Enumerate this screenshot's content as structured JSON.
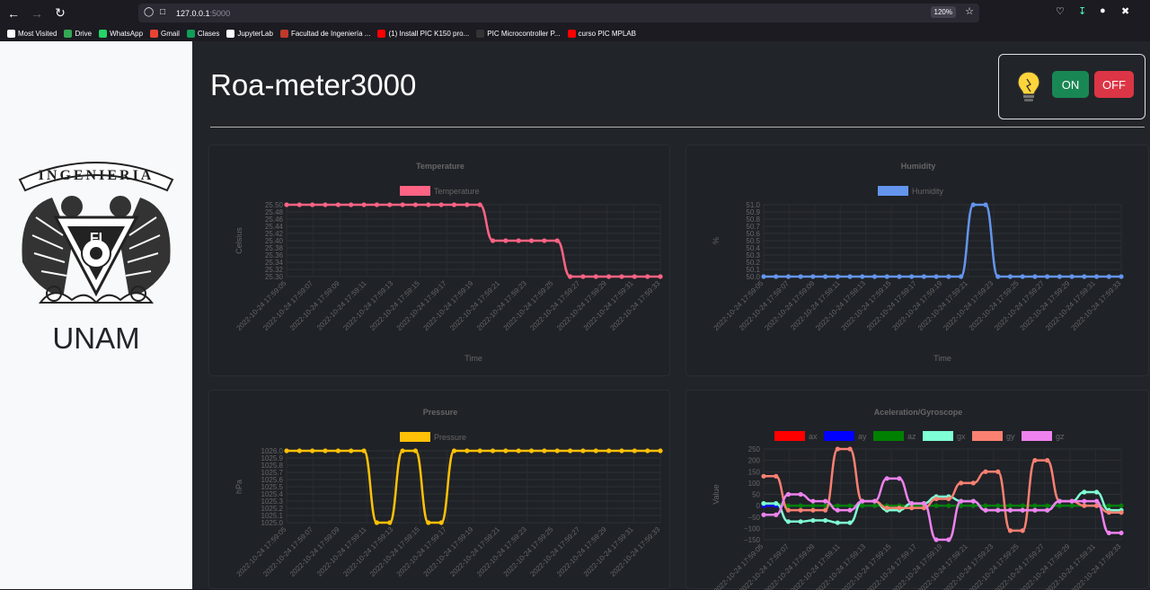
{
  "browser": {
    "url_host": "127.0.0.1",
    "url_port": ":5000",
    "zoom": "120%"
  },
  "bookmarks": [
    {
      "label": "Most Visited",
      "color": "#fbfbfe"
    },
    {
      "label": "Drive",
      "color": "#34a853"
    },
    {
      "label": "WhatsApp",
      "color": "#25d366"
    },
    {
      "label": "Gmail",
      "color": "#ea4335"
    },
    {
      "label": "Clases",
      "color": "#0f9d58"
    },
    {
      "label": "JupyterLab",
      "color": "#fbfbfe"
    },
    {
      "label": "Facultad de Ingeniería ...",
      "color": "#c0392b"
    },
    {
      "label": "(1) Install PIC K150 pro...",
      "color": "#ff0000"
    },
    {
      "label": "PIC Microcontroller P...",
      "color": "#333333"
    },
    {
      "label": "curso PIC MPLAB",
      "color": "#ff0000"
    }
  ],
  "sidebar": {
    "logo_text": "INGENIERIA",
    "logo_letters": "FI",
    "name": "UNAM"
  },
  "header": {
    "title": "Roa-meter3000"
  },
  "controls": {
    "on_label": "ON",
    "off_label": "OFF",
    "on_color": "#198754",
    "off_color": "#dc3545"
  },
  "time_labels": [
    "2022-10-24 17:59:05",
    "2022-10-24 17:59:07",
    "2022-10-24 17:59:09",
    "2022-10-24 17:59:11",
    "2022-10-24 17:59:13",
    "2022-10-24 17:59:15",
    "2022-10-24 17:59:17",
    "2022-10-24 17:59:19",
    "2022-10-24 17:59:21",
    "2022-10-24 17:59:23",
    "2022-10-24 17:59:25",
    "2022-10-24 17:59:27",
    "2022-10-24 17:59:29",
    "2022-10-24 17:59:31",
    "2022-10-24 17:59:33"
  ],
  "chart_data": [
    {
      "id": "temperature",
      "type": "line",
      "title": "Temperature",
      "xlabel": "Time",
      "ylabel": "Celsius",
      "ylim": [
        25.3,
        25.5
      ],
      "yticks": [
        "25.50",
        "25.48",
        "25.46",
        "25.44",
        "25.42",
        "25.40",
        "25.38",
        "25.36",
        "25.34",
        "25.32",
        "25.30"
      ],
      "series": [
        {
          "name": "Temperature",
          "color": "#ff6384",
          "values": [
            25.5,
            25.5,
            25.5,
            25.5,
            25.5,
            25.5,
            25.5,
            25.5,
            25.5,
            25.5,
            25.5,
            25.5,
            25.5,
            25.5,
            25.5,
            25.5,
            25.4,
            25.4,
            25.4,
            25.4,
            25.4,
            25.4,
            25.3,
            25.3,
            25.3,
            25.3,
            25.3,
            25.3,
            25.3,
            25.3
          ]
        }
      ]
    },
    {
      "id": "humidity",
      "type": "line",
      "title": "Humidity",
      "xlabel": "Time",
      "ylabel": "%",
      "ylim": [
        50.0,
        51.0
      ],
      "yticks": [
        "51.0",
        "50.9",
        "50.8",
        "50.7",
        "50.6",
        "50.5",
        "50.4",
        "50.3",
        "50.2",
        "50.1",
        "50.0"
      ],
      "series": [
        {
          "name": "Humidity",
          "color": "#6495ed",
          "values": [
            50,
            50,
            50,
            50,
            50,
            50,
            50,
            50,
            50,
            50,
            50,
            50,
            50,
            50,
            50,
            50,
            50,
            51,
            51,
            50,
            50,
            50,
            50,
            50,
            50,
            50,
            50,
            50,
            50,
            50
          ]
        }
      ]
    },
    {
      "id": "pressure",
      "type": "line",
      "title": "Pressure",
      "xlabel": "",
      "ylabel": "hPa",
      "ylim": [
        1025.0,
        1026.0
      ],
      "yticks": [
        "1026.0",
        "1025.9",
        "1025.8",
        "1025.7",
        "1025.6",
        "1025.5",
        "1025.4",
        "1025.3",
        "1025.2",
        "1025.1",
        "1025.0"
      ],
      "series": [
        {
          "name": "Pressure",
          "color": "#ffc107",
          "values": [
            1026,
            1026,
            1026,
            1026,
            1026,
            1026,
            1026,
            1025,
            1025,
            1026,
            1026,
            1025,
            1025,
            1026,
            1026,
            1026,
            1026,
            1026,
            1026,
            1026,
            1026,
            1026,
            1026,
            1026,
            1026,
            1026,
            1026,
            1026,
            1026,
            1026
          ]
        }
      ]
    },
    {
      "id": "accel",
      "type": "line",
      "title": "Aceleration/Gyroscope",
      "xlabel": "",
      "ylabel": "Value",
      "ylim": [
        -150,
        250
      ],
      "yticks": [
        "250",
        "200",
        "150",
        "100",
        "50",
        "0",
        "−50",
        "−100",
        "−150"
      ],
      "series": [
        {
          "name": "ax",
          "color": "#ff0000",
          "values": [
            0,
            0,
            0,
            0,
            0,
            0,
            0,
            0,
            0,
            0,
            0,
            0,
            0,
            0,
            0,
            0,
            0,
            0,
            0,
            0,
            0,
            0,
            0,
            0,
            0,
            0,
            0,
            0,
            0,
            0
          ]
        },
        {
          "name": "ay",
          "color": "#0000ff",
          "values": [
            0,
            0,
            0,
            0,
            0,
            0,
            0,
            0,
            0,
            0,
            0,
            0,
            0,
            0,
            0,
            0,
            0,
            0,
            0,
            0,
            0,
            0,
            0,
            0,
            0,
            0,
            0,
            0,
            0,
            0
          ]
        },
        {
          "name": "az",
          "color": "#008000",
          "values": [
            10,
            10,
            0,
            0,
            0,
            0,
            0,
            0,
            0,
            0,
            0,
            0,
            0,
            0,
            0,
            0,
            0,
            0,
            0,
            0,
            0,
            0,
            0,
            0,
            0,
            0,
            0,
            0,
            0,
            0
          ]
        },
        {
          "name": "gx",
          "color": "#7fffd4",
          "values": [
            10,
            10,
            -70,
            -70,
            -65,
            -65,
            -75,
            -75,
            20,
            20,
            -20,
            -20,
            10,
            10,
            40,
            40,
            20,
            20,
            -20,
            -20,
            -20,
            -20,
            -20,
            -20,
            20,
            20,
            60,
            60,
            -20,
            -20
          ]
        },
        {
          "name": "gy",
          "color": "#fa8072",
          "values": [
            130,
            130,
            -20,
            -20,
            -20,
            -20,
            250,
            250,
            20,
            20,
            -10,
            -10,
            -10,
            -10,
            30,
            30,
            100,
            100,
            150,
            150,
            -110,
            -110,
            200,
            200,
            20,
            20,
            0,
            0,
            -30,
            -30
          ]
        },
        {
          "name": "gz",
          "color": "#ee82ee",
          "values": [
            -40,
            -40,
            50,
            50,
            20,
            20,
            -20,
            -20,
            20,
            20,
            120,
            120,
            10,
            10,
            -150,
            -150,
            20,
            20,
            -20,
            -20,
            -20,
            -20,
            -20,
            -20,
            20,
            20,
            20,
            20,
            -120,
            -120
          ]
        }
      ]
    }
  ]
}
